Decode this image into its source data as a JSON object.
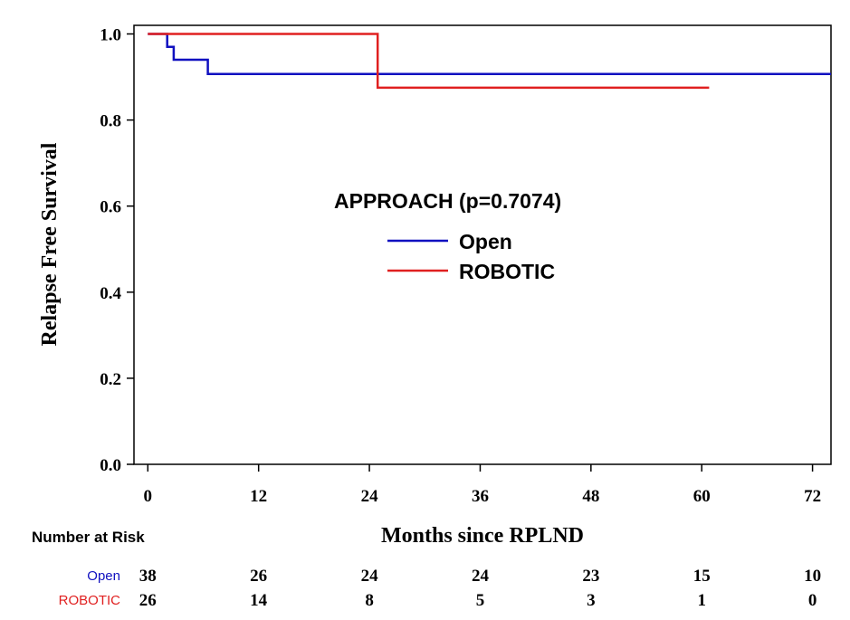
{
  "chart_data": {
    "type": "line",
    "xlabel": "Months since RPLND",
    "ylabel": "Relapse Free Survival",
    "xlim": [
      -1.5,
      74
    ],
    "ylim": [
      0,
      1.02
    ],
    "x_ticks": [
      0,
      12,
      24,
      36,
      48,
      60,
      72
    ],
    "y_ticks": [
      "0.0",
      "0.2",
      "0.4",
      "0.6",
      "0.8",
      "1.0"
    ],
    "grid": false,
    "legend": {
      "title": "APPROACH (p=0.7074)",
      "placement": "center",
      "entries": [
        "Open",
        "ROBOTIC"
      ]
    },
    "series": [
      {
        "name": "Open",
        "color": "#1010c0",
        "step": true,
        "points": [
          [
            0,
            1.0
          ],
          [
            2.1,
            1.0
          ],
          [
            2.1,
            0.97
          ],
          [
            2.8,
            0.97
          ],
          [
            2.8,
            0.94
          ],
          [
            6.5,
            0.94
          ],
          [
            6.5,
            0.907
          ],
          [
            74,
            0.907
          ]
        ]
      },
      {
        "name": "ROBOTIC",
        "color": "#e02020",
        "step": true,
        "points": [
          [
            0,
            1.0
          ],
          [
            24.9,
            1.0
          ],
          [
            24.9,
            0.875
          ],
          [
            60.8,
            0.875
          ]
        ]
      }
    ],
    "number_at_risk": {
      "heading": "Number at Risk",
      "times": [
        0,
        12,
        24,
        36,
        48,
        60,
        72
      ],
      "rows": [
        {
          "name": "Open",
          "color": "#1010c0",
          "counts": [
            "38",
            "26",
            "24",
            "24",
            "23",
            "15",
            "10"
          ]
        },
        {
          "name": "ROBOTIC",
          "color": "#e02020",
          "counts": [
            "26",
            "14",
            "8",
            "5",
            "3",
            "1",
            "0"
          ]
        }
      ]
    }
  }
}
